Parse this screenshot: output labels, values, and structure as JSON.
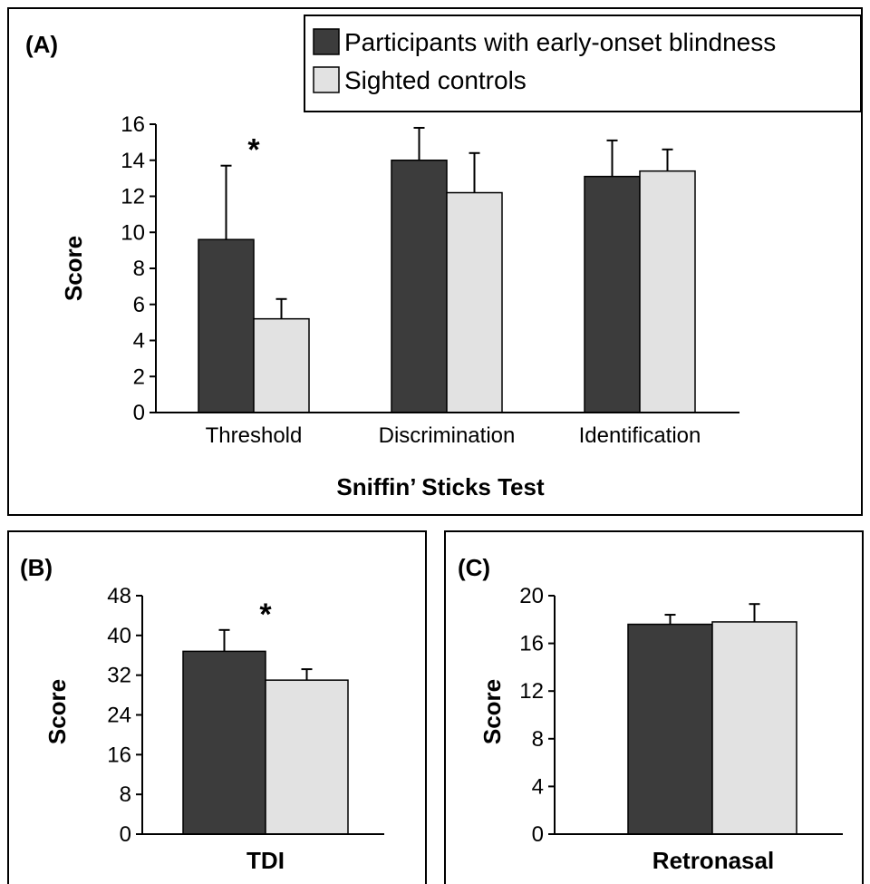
{
  "chart_data": [
    {
      "panel": "(A)",
      "type": "bar",
      "categories": [
        "Threshold",
        "Discrimination",
        "Identification"
      ],
      "series": [
        {
          "name": "Participants with early-onset blindness",
          "values": [
            9.6,
            14.0,
            13.1
          ],
          "errors": [
            4.1,
            1.8,
            2.0
          ],
          "color": "#3c3c3c"
        },
        {
          "name": "Sighted controls",
          "values": [
            5.2,
            12.2,
            13.4
          ],
          "errors": [
            1.1,
            2.2,
            1.2
          ],
          "color": "#e2e2e2"
        }
      ],
      "xlabel": "Sniffin’ Sticks Test",
      "ylabel": "Score",
      "ylim": [
        0,
        16
      ],
      "yticks": [
        0,
        2,
        4,
        6,
        8,
        10,
        12,
        14,
        16
      ],
      "significance": [
        "*",
        "",
        ""
      ]
    },
    {
      "panel": "(B)",
      "type": "bar",
      "categories": [
        ""
      ],
      "series": [
        {
          "name": "Participants with early-onset blindness",
          "values": [
            36.8
          ],
          "errors": [
            4.3
          ],
          "color": "#3c3c3c"
        },
        {
          "name": "Sighted controls",
          "values": [
            31.0
          ],
          "errors": [
            2.2
          ],
          "color": "#e2e2e2"
        }
      ],
      "xlabel": "TDI",
      "ylabel": "Score",
      "ylim": [
        0,
        48
      ],
      "yticks": [
        0,
        8,
        16,
        24,
        32,
        40,
        48
      ],
      "significance": [
        "*"
      ]
    },
    {
      "panel": "(C)",
      "type": "bar",
      "categories": [
        ""
      ],
      "series": [
        {
          "name": "Participants with early-onset blindness",
          "values": [
            17.6
          ],
          "errors": [
            0.8
          ],
          "color": "#3c3c3c"
        },
        {
          "name": "Sighted controls",
          "values": [
            17.8
          ],
          "errors": [
            1.5
          ],
          "color": "#e2e2e2"
        }
      ],
      "xlabel": "Retronasal",
      "ylabel": "Score",
      "ylim": [
        0,
        20
      ],
      "yticks": [
        0,
        4,
        8,
        12,
        16,
        20
      ],
      "significance": [
        ""
      ]
    }
  ],
  "legend": {
    "placement": "top-right",
    "items": [
      {
        "label": "Participants with early-onset blindness",
        "color": "#3c3c3c"
      },
      {
        "label": "Sighted controls",
        "color": "#e2e2e2"
      }
    ]
  }
}
